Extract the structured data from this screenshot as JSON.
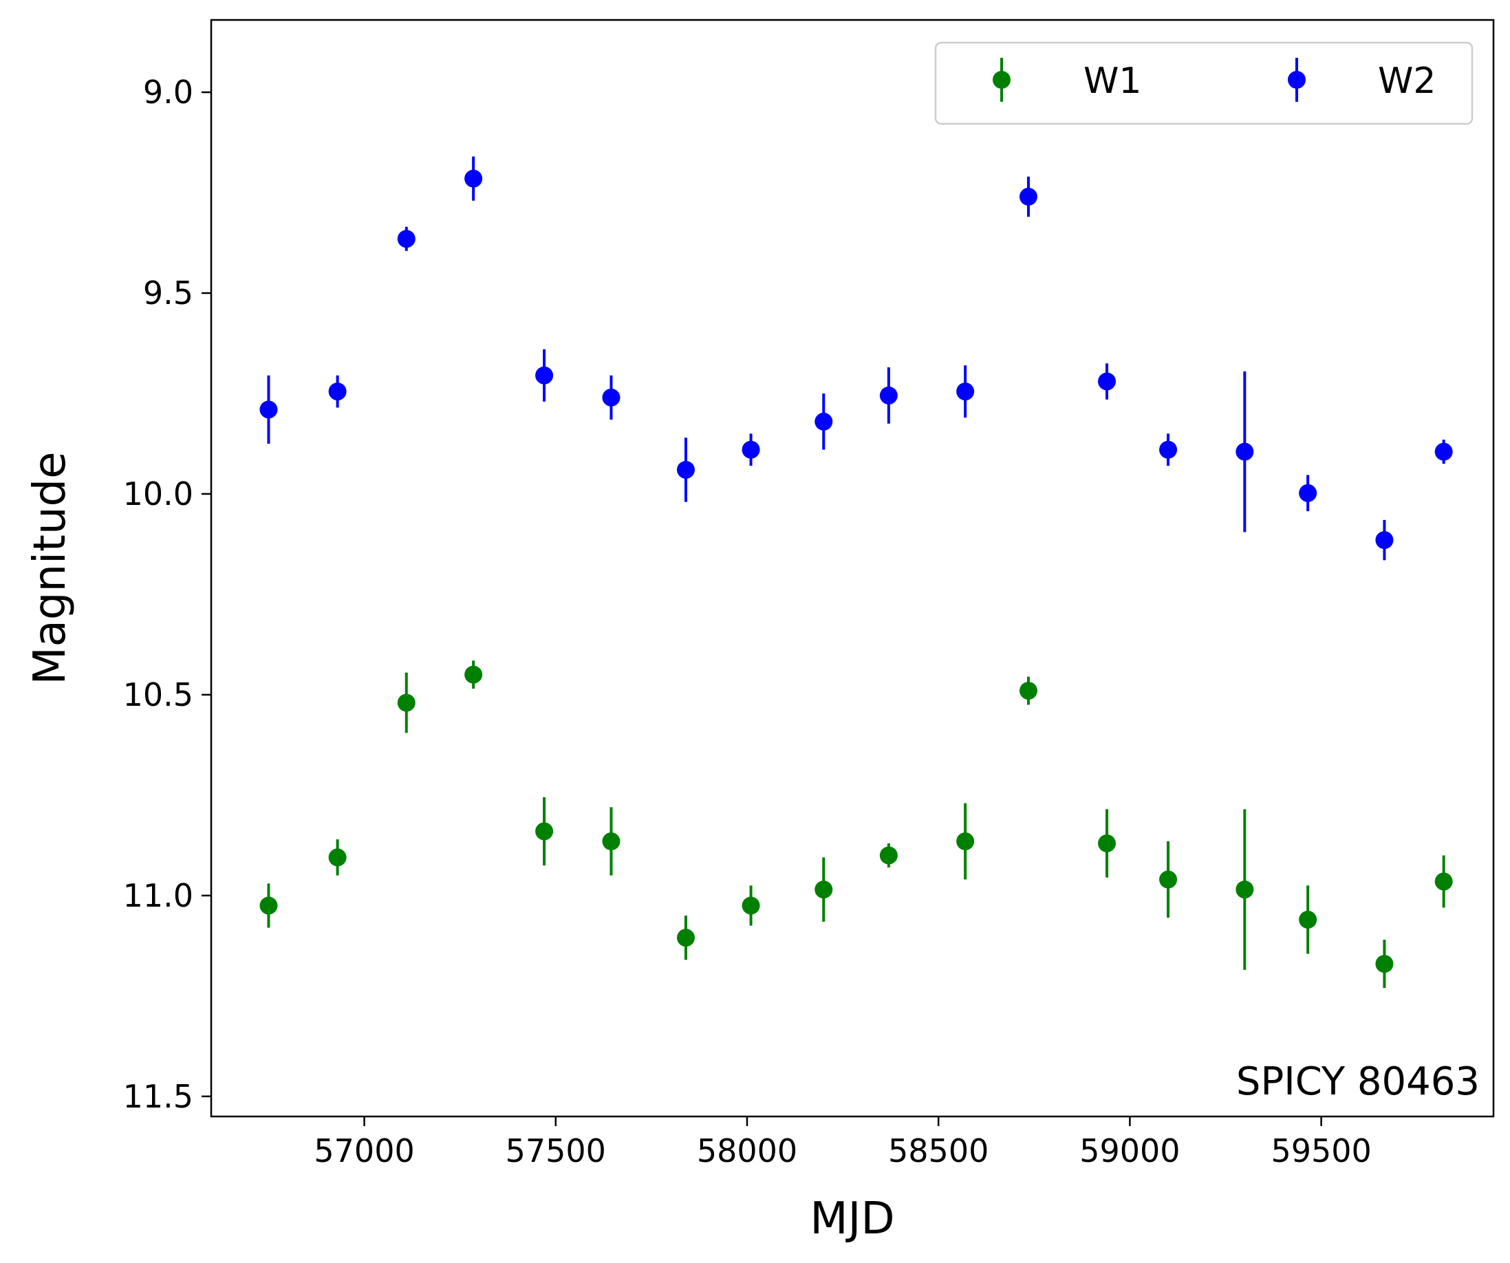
{
  "chart_data": {
    "type": "scatter",
    "title": "",
    "xlabel": "MJD",
    "ylabel": "Magnitude",
    "xlim": [
      56600,
      59950
    ],
    "ylim": [
      11.55,
      8.82
    ],
    "y_inverted": true,
    "grid": false,
    "legend_position": "top-right",
    "x_ticks": [
      57000,
      57500,
      58000,
      58500,
      59000,
      59500
    ],
    "x_tick_labels": [
      "57000",
      "57500",
      "58000",
      "58500",
      "59000",
      "59500"
    ],
    "y_ticks": [
      9.0,
      9.5,
      10.0,
      10.5,
      11.0,
      11.5
    ],
    "y_tick_labels": [
      "9.0",
      "9.5",
      "10.0",
      "10.5",
      "11.0",
      "11.5"
    ],
    "annotation": "SPICY 80463",
    "series": [
      {
        "name": "W1",
        "color": "#008000",
        "x": [
          56750,
          56930,
          57110,
          57285,
          57470,
          57645,
          57840,
          58010,
          58200,
          58370,
          58570,
          58735,
          58940,
          59100,
          59300,
          59465,
          59665,
          59820
        ],
        "y": [
          11.025,
          10.905,
          10.52,
          10.45,
          10.84,
          10.865,
          11.105,
          11.025,
          10.985,
          10.9,
          10.865,
          10.49,
          10.87,
          10.96,
          10.985,
          11.06,
          11.17,
          10.965
        ],
        "err": [
          0.055,
          0.045,
          0.075,
          0.035,
          0.085,
          0.085,
          0.055,
          0.05,
          0.08,
          0.03,
          0.095,
          0.035,
          0.085,
          0.095,
          0.2,
          0.085,
          0.06,
          0.065
        ]
      },
      {
        "name": "W2",
        "color": "#0000ff",
        "x": [
          56750,
          56930,
          57110,
          57285,
          57470,
          57645,
          57840,
          58010,
          58200,
          58370,
          58570,
          58735,
          58940,
          59100,
          59300,
          59465,
          59665,
          59820
        ],
        "y": [
          9.79,
          9.745,
          9.365,
          9.215,
          9.705,
          9.76,
          9.94,
          9.89,
          9.82,
          9.755,
          9.745,
          9.26,
          9.72,
          9.89,
          9.895,
          9.998,
          10.115,
          9.895
        ],
        "err": [
          0.085,
          0.04,
          0.03,
          0.055,
          0.065,
          0.055,
          0.08,
          0.04,
          0.07,
          0.07,
          0.065,
          0.05,
          0.045,
          0.04,
          0.2,
          0.045,
          0.05,
          0.03
        ]
      }
    ]
  }
}
